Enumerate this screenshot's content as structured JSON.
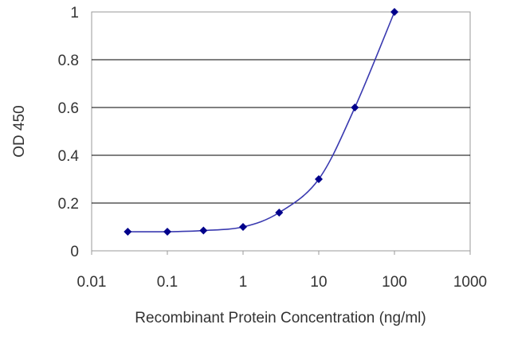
{
  "chart_data": {
    "type": "line",
    "title": "",
    "xlabel": "Recombinant Protein Concentration (ng/ml)",
    "ylabel": "OD 450",
    "xscale": "log",
    "xlim": [
      0.01,
      1000
    ],
    "ylim": [
      0,
      1
    ],
    "x_ticks": [
      "0.01",
      "0.1",
      "1",
      "10",
      "100",
      "1000"
    ],
    "y_ticks": [
      "0",
      "0.2",
      "0.4",
      "0.6",
      "0.8",
      "1"
    ],
    "grid": "horizontal",
    "legend": "none",
    "series": [
      {
        "x": [
          0.03,
          0.1,
          0.3,
          1,
          3,
          10,
          30,
          100
        ],
        "y": [
          0.08,
          0.08,
          0.085,
          0.1,
          0.16,
          0.3,
          0.6,
          1.0
        ]
      }
    ],
    "colors": {
      "line": "#3a3ab0",
      "marker": "#00008b",
      "grid": "#000000",
      "frame": "#9a9a9a"
    }
  }
}
